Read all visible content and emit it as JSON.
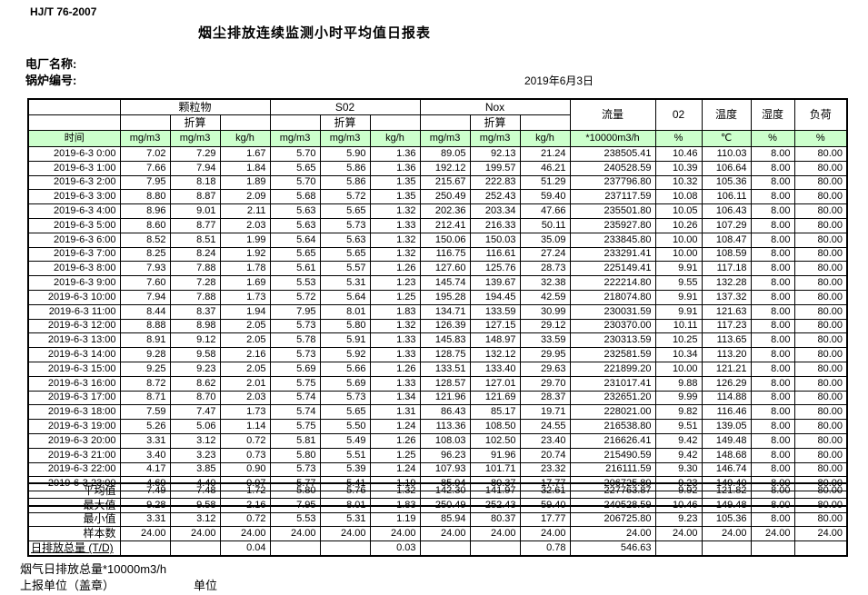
{
  "header": {
    "standard": "HJ/T  76-2007",
    "title": "烟尘排放连续监测小时平均值日报表",
    "plant_label": "电厂名称:",
    "boiler_label": "锅炉编号:",
    "date": "2019年6月3日"
  },
  "colors": {
    "header_green": "#ccffcc",
    "border": "#000000"
  },
  "table": {
    "time_header": "时间",
    "groups": [
      {
        "label": "颗粒物",
        "sub": "折算"
      },
      {
        "label": "S02",
        "sub": "折算"
      },
      {
        "label": "Nox",
        "sub": "折算"
      }
    ],
    "single_cols": [
      "流量",
      "02",
      "温度",
      "湿度",
      "负荷"
    ],
    "unit_row": [
      "mg/m3",
      "mg/m3",
      "kg/h",
      "mg/m3",
      "mg/m3",
      "kg/h",
      "mg/m3",
      "mg/m3",
      "kg/h",
      "*10000m3/h",
      "%",
      "℃",
      "%",
      "%"
    ],
    "rows": [
      [
        "2019-6-3 0:00",
        "7.02",
        "7.29",
        "1.67",
        "5.70",
        "5.90",
        "1.36",
        "89.05",
        "92.13",
        "21.24",
        "238505.41",
        "10.46",
        "110.03",
        "8.00",
        "80.00"
      ],
      [
        "2019-6-3 1:00",
        "7.66",
        "7.94",
        "1.84",
        "5.65",
        "5.86",
        "1.36",
        "192.12",
        "199.57",
        "46.21",
        "240528.59",
        "10.39",
        "106.64",
        "8.00",
        "80.00"
      ],
      [
        "2019-6-3 2:00",
        "7.95",
        "8.18",
        "1.89",
        "5.70",
        "5.86",
        "1.35",
        "215.67",
        "222.83",
        "51.29",
        "237796.80",
        "10.32",
        "105.36",
        "8.00",
        "80.00"
      ],
      [
        "2019-6-3 3:00",
        "8.80",
        "8.87",
        "2.09",
        "5.68",
        "5.72",
        "1.35",
        "250.49",
        "252.43",
        "59.40",
        "237117.59",
        "10.08",
        "106.11",
        "8.00",
        "80.00"
      ],
      [
        "2019-6-3 4:00",
        "8.96",
        "9.01",
        "2.11",
        "5.63",
        "5.65",
        "1.32",
        "202.36",
        "203.34",
        "47.66",
        "235501.80",
        "10.05",
        "106.43",
        "8.00",
        "80.00"
      ],
      [
        "2019-6-3 5:00",
        "8.60",
        "8.77",
        "2.03",
        "5.63",
        "5.73",
        "1.33",
        "212.41",
        "216.33",
        "50.11",
        "235927.80",
        "10.26",
        "107.29",
        "8.00",
        "80.00"
      ],
      [
        "2019-6-3 6:00",
        "8.52",
        "8.51",
        "1.99",
        "5.64",
        "5.63",
        "1.32",
        "150.06",
        "150.03",
        "35.09",
        "233845.80",
        "10.00",
        "108.47",
        "8.00",
        "80.00"
      ],
      [
        "2019-6-3 7:00",
        "8.25",
        "8.24",
        "1.92",
        "5.65",
        "5.65",
        "1.32",
        "116.75",
        "116.61",
        "27.24",
        "233291.41",
        "10.00",
        "108.59",
        "8.00",
        "80.00"
      ],
      [
        "2019-6-3 8:00",
        "7.93",
        "7.88",
        "1.78",
        "5.61",
        "5.57",
        "1.26",
        "127.60",
        "125.76",
        "28.73",
        "225149.41",
        "9.91",
        "117.18",
        "8.00",
        "80.00"
      ],
      [
        "2019-6-3 9:00",
        "7.60",
        "7.28",
        "1.69",
        "5.53",
        "5.31",
        "1.23",
        "145.74",
        "139.67",
        "32.38",
        "222214.80",
        "9.55",
        "132.28",
        "8.00",
        "80.00"
      ],
      [
        "2019-6-3 10:00",
        "7.94",
        "7.88",
        "1.73",
        "5.72",
        "5.64",
        "1.25",
        "195.28",
        "194.45",
        "42.59",
        "218074.80",
        "9.91",
        "137.32",
        "8.00",
        "80.00"
      ],
      [
        "2019-6-3 11:00",
        "8.44",
        "8.37",
        "1.94",
        "7.95",
        "8.01",
        "1.83",
        "134.71",
        "133.59",
        "30.99",
        "230031.59",
        "9.91",
        "121.63",
        "8.00",
        "80.00"
      ],
      [
        "2019-6-3 12:00",
        "8.88",
        "8.98",
        "2.05",
        "5.73",
        "5.80",
        "1.32",
        "126.39",
        "127.15",
        "29.12",
        "230370.00",
        "10.11",
        "117.23",
        "8.00",
        "80.00"
      ],
      [
        "2019-6-3 13:00",
        "8.91",
        "9.12",
        "2.05",
        "5.78",
        "5.91",
        "1.33",
        "145.83",
        "148.97",
        "33.59",
        "230313.59",
        "10.25",
        "113.65",
        "8.00",
        "80.00"
      ],
      [
        "2019-6-3 14:00",
        "9.28",
        "9.58",
        "2.16",
        "5.73",
        "5.92",
        "1.33",
        "128.75",
        "132.12",
        "29.95",
        "232581.59",
        "10.34",
        "113.20",
        "8.00",
        "80.00"
      ],
      [
        "2019-6-3 15:00",
        "9.25",
        "9.23",
        "2.05",
        "5.69",
        "5.66",
        "1.26",
        "133.51",
        "133.40",
        "29.63",
        "221899.20",
        "10.00",
        "121.21",
        "8.00",
        "80.00"
      ],
      [
        "2019-6-3 16:00",
        "8.72",
        "8.62",
        "2.01",
        "5.75",
        "5.69",
        "1.33",
        "128.57",
        "127.01",
        "29.70",
        "231017.41",
        "9.88",
        "126.29",
        "8.00",
        "80.00"
      ],
      [
        "2019-6-3 17:00",
        "8.71",
        "8.70",
        "2.03",
        "5.74",
        "5.73",
        "1.34",
        "121.96",
        "121.69",
        "28.37",
        "232651.20",
        "9.99",
        "114.88",
        "8.00",
        "80.00"
      ],
      [
        "2019-6-3 18:00",
        "7.59",
        "7.47",
        "1.73",
        "5.74",
        "5.65",
        "1.31",
        "86.43",
        "85.17",
        "19.71",
        "228021.00",
        "9.82",
        "116.46",
        "8.00",
        "80.00"
      ],
      [
        "2019-6-3 19:00",
        "5.26",
        "5.06",
        "1.14",
        "5.75",
        "5.50",
        "1.24",
        "113.36",
        "108.50",
        "24.55",
        "216538.80",
        "9.51",
        "139.05",
        "8.00",
        "80.00"
      ],
      [
        "2019-6-3 20:00",
        "3.31",
        "3.12",
        "0.72",
        "5.81",
        "5.49",
        "1.26",
        "108.03",
        "102.50",
        "23.40",
        "216626.41",
        "9.42",
        "149.48",
        "8.00",
        "80.00"
      ],
      [
        "2019-6-3 21:00",
        "3.40",
        "3.23",
        "0.73",
        "5.80",
        "5.51",
        "1.25",
        "96.23",
        "91.96",
        "20.74",
        "215490.59",
        "9.42",
        "148.68",
        "8.00",
        "80.00"
      ],
      [
        "2019-6-3 22:00",
        "4.17",
        "3.85",
        "0.90",
        "5.73",
        "5.39",
        "1.24",
        "107.93",
        "101.71",
        "23.32",
        "216111.59",
        "9.30",
        "146.74",
        "8.00",
        "80.00"
      ],
      [
        "2019-6-3 23:00",
        "4.69",
        "4.40",
        "0.97",
        "5.77",
        "5.41",
        "1.19",
        "85.94",
        "80.37",
        "17.77",
        "206725.80",
        "9.23",
        "149.40",
        "8.00",
        "80.00"
      ]
    ],
    "summary": [
      [
        "平均值",
        "7.49",
        "7.48",
        "1.72",
        "5.80",
        "5.76",
        "1.32",
        "142.30",
        "141.97",
        "32.61",
        "227763.87",
        "9.92",
        "121.82",
        "8.00",
        "80.00"
      ],
      [
        "最大值",
        "9.28",
        "9.58",
        "2.16",
        "7.95",
        "8.01",
        "1.83",
        "250.49",
        "252.43",
        "59.40",
        "240528.59",
        "10.46",
        "149.48",
        "8.00",
        "80.00"
      ],
      [
        "最小值",
        "3.31",
        "3.12",
        "0.72",
        "5.53",
        "5.31",
        "1.19",
        "85.94",
        "80.37",
        "17.77",
        "206725.80",
        "9.23",
        "105.36",
        "8.00",
        "80.00"
      ],
      [
        "样本数",
        "24.00",
        "24.00",
        "24.00",
        "24.00",
        "24.00",
        "24.00",
        "24.00",
        "24.00",
        "24.00",
        "24.00",
        "24.00",
        "24.00",
        "24.00",
        "24.00"
      ],
      [
        "日排放总量 (T/D)",
        "",
        "",
        "0.04",
        "",
        "",
        "0.03",
        "",
        "",
        "0.78",
        "546.63",
        "",
        "",
        "",
        ""
      ]
    ]
  },
  "footer": {
    "note": "烟气日排放总量*10000m3/h",
    "report_unit_label": "上报单位（盖章）",
    "unit_label": "单位"
  }
}
